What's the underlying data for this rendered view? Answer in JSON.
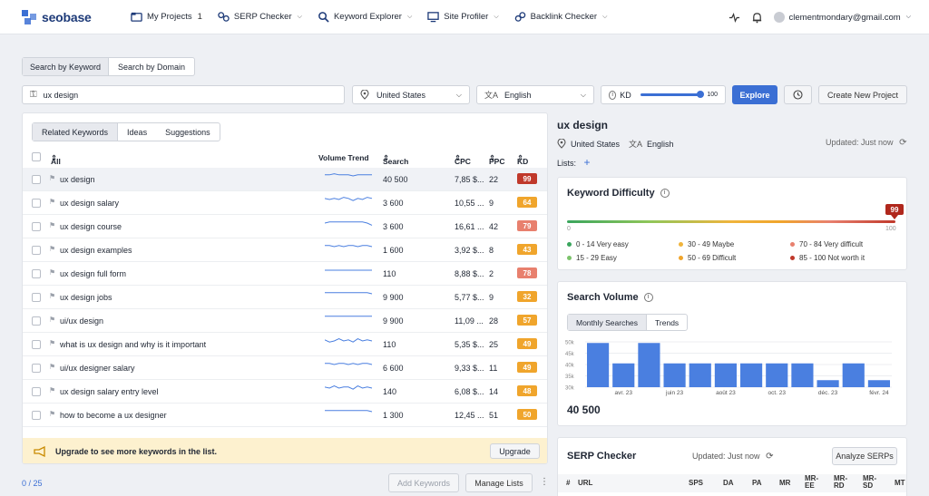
{
  "brand": {
    "name": "seobase",
    "accent": "#3b6fd4"
  },
  "nav": {
    "projects": {
      "label": "My Projects",
      "count": "1"
    },
    "items": [
      {
        "label": "SERP Checker"
      },
      {
        "label": "Keyword Explorer"
      },
      {
        "label": "Site Profiler"
      },
      {
        "label": "Backlink Checker"
      }
    ],
    "user_email": "clementmondary@gmail.com"
  },
  "search": {
    "tabs": [
      "Search by Keyword",
      "Search by Domain"
    ],
    "keyword_value": "ux design",
    "country": "United States",
    "language": "English",
    "kd_label": "KD",
    "kd_value": "100",
    "explore_label": "Explore",
    "create_project_label": "Create New Project"
  },
  "keywords_panel": {
    "tabs": [
      "Related Keywords",
      "Ideas",
      "Suggestions"
    ],
    "columns": {
      "keyword": "All Keywords",
      "trend": "Volume Trend",
      "volume": "Search Volume",
      "cpc": "CPC",
      "ppc": "PPC",
      "kd": "KD"
    },
    "rows": [
      {
        "keyword": "ux design",
        "volume": "40 500",
        "cpc": "7,85 $...",
        "ppc": "22",
        "kd": "99",
        "kd_color": "#c0392b",
        "trend": [
          6,
          6,
          7,
          6,
          6,
          6,
          5,
          6,
          6,
          6,
          6
        ]
      },
      {
        "keyword": "ux design salary",
        "volume": "3 600",
        "cpc": "10,55 ...",
        "ppc": "9",
        "kd": "64",
        "kd_color": "#f0a52c",
        "trend": [
          6,
          5,
          6,
          5,
          7,
          6,
          4,
          6,
          5,
          7,
          6
        ]
      },
      {
        "keyword": "ux design course",
        "volume": "3 600",
        "cpc": "16,61 ...",
        "ppc": "42",
        "kd": "79",
        "kd_color": "#e8806e",
        "trend": [
          5,
          6,
          6,
          6,
          6,
          6,
          6,
          6,
          6,
          5,
          3
        ]
      },
      {
        "keyword": "ux design examples",
        "volume": "1 600",
        "cpc": "3,92 $...",
        "ppc": "8",
        "kd": "43",
        "kd_color": "#f0a52c",
        "trend": [
          6,
          6,
          5,
          6,
          5,
          6,
          6,
          5,
          6,
          6,
          5
        ]
      },
      {
        "keyword": "ux design full form",
        "volume": "110",
        "cpc": "8,88 $...",
        "ppc": "2",
        "kd": "78",
        "kd_color": "#e8806e",
        "trend": [
          5,
          5,
          5,
          5,
          5,
          5,
          5,
          5,
          5,
          5,
          5
        ]
      },
      {
        "keyword": "ux design jobs",
        "volume": "9 900",
        "cpc": "5,77 $...",
        "ppc": "9",
        "kd": "32",
        "kd_color": "#f0a52c",
        "trend": [
          6,
          6,
          6,
          6,
          6,
          6,
          6,
          6,
          6,
          6,
          5
        ]
      },
      {
        "keyword": "ui/ux design",
        "volume": "9 900",
        "cpc": "11,09 ...",
        "ppc": "28",
        "kd": "57",
        "kd_color": "#f0a52c",
        "trend": [
          6,
          6,
          6,
          6,
          6,
          6,
          6,
          6,
          6,
          6,
          6
        ]
      },
      {
        "keyword": "what is ux design and why is it important",
        "volume": "110",
        "cpc": "5,35 $...",
        "ppc": "25",
        "kd": "49",
        "kd_color": "#f0a52c",
        "trend": [
          6,
          4,
          5,
          7,
          5,
          6,
          4,
          7,
          5,
          6,
          5
        ]
      },
      {
        "keyword": "ui/ux designer salary",
        "volume": "6 600",
        "cpc": "9,33 $...",
        "ppc": "11",
        "kd": "49",
        "kd_color": "#f0a52c",
        "trend": [
          6,
          6,
          5,
          6,
          6,
          5,
          6,
          5,
          6,
          6,
          5
        ]
      },
      {
        "keyword": "ux design salary entry level",
        "volume": "140",
        "cpc": "6,08 $...",
        "ppc": "14",
        "kd": "48",
        "kd_color": "#f0a52c",
        "trend": [
          6,
          5,
          7,
          5,
          6,
          6,
          4,
          7,
          5,
          6,
          5
        ]
      },
      {
        "keyword": "how to become a ux designer",
        "volume": "1 300",
        "cpc": "12,45 ...",
        "ppc": "51",
        "kd": "50",
        "kd_color": "#f0a52c",
        "trend": [
          6,
          6,
          6,
          6,
          6,
          6,
          6,
          6,
          6,
          6,
          5
        ]
      }
    ],
    "upgrade_text": "Upgrade to see more keywords in the list.",
    "upgrade_label": "Upgrade",
    "count_label": "0 / 25",
    "add_keywords_label": "Add Keywords",
    "manage_lists_label": "Manage Lists"
  },
  "overview": {
    "title": "ux design",
    "country": "United States",
    "language": "English",
    "updated": "Updated:  Just now",
    "lists_label": "Lists:"
  },
  "kd_card": {
    "title": "Keyword Difficulty",
    "value": "99",
    "scale_min": "0",
    "scale_max": "100",
    "legend": [
      {
        "label": "0 - 14 Very easy",
        "color": "#3aa55d"
      },
      {
        "label": "30 - 49 Maybe",
        "color": "#f0b43c"
      },
      {
        "label": "70 - 84 Very difficult",
        "color": "#e8806e"
      },
      {
        "label": "15 - 29 Easy",
        "color": "#7cc36b"
      },
      {
        "label": "50 - 69 Difficult",
        "color": "#f0a52c"
      },
      {
        "label": "85 - 100 Not worth it",
        "color": "#c0392b"
      }
    ]
  },
  "sv_card": {
    "title": "Search Volume",
    "tabs": [
      "Monthly Searches",
      "Trends"
    ],
    "total": "40 500",
    "chart_data": {
      "type": "bar",
      "values": [
        49500,
        40500,
        49500,
        40500,
        40500,
        40500,
        40500,
        40500,
        40500,
        33100,
        40500,
        33100
      ],
      "y_ticks": [
        "50k",
        "45k",
        "40k",
        "35k",
        "30k"
      ],
      "ylim": [
        30000,
        50000
      ],
      "x_labels": [
        "avr. 23",
        "juin 23",
        "août 23",
        "oct. 23",
        "déc. 23",
        "févr. 24"
      ]
    }
  },
  "serp_card": {
    "title": "SERP Checker",
    "updated": "Updated: Just now",
    "analyze_label": "Analyze SERPs",
    "columns": [
      "#",
      "URL",
      "SPS",
      "DA",
      "PA",
      "MR",
      "MR-EE",
      "MR-RD",
      "MR-SD",
      "MT"
    ]
  }
}
